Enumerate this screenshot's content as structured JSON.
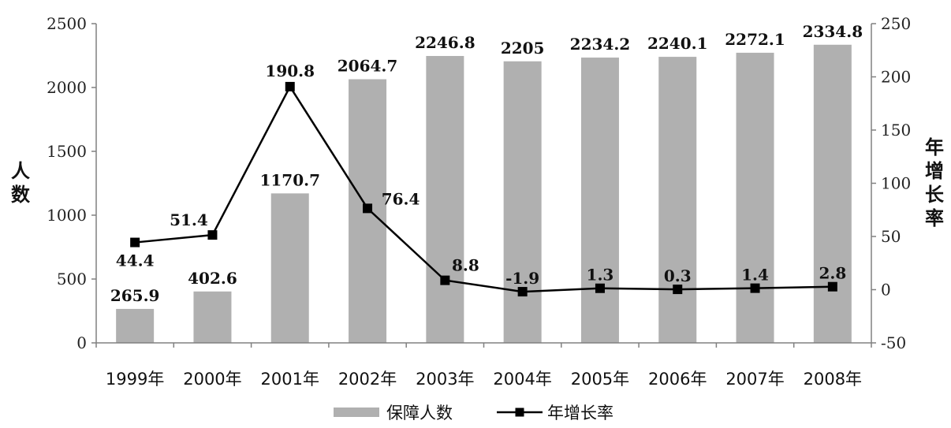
{
  "chart_data": {
    "type": "bar",
    "categories": [
      "1999年",
      "2000年",
      "2001年",
      "2002年",
      "2003年",
      "2004年",
      "2005年",
      "2006年",
      "2007年",
      "2008年"
    ],
    "series": [
      {
        "name": "保障人数",
        "type": "bar",
        "axis": "left",
        "color": "#b0b0b0",
        "values": [
          265.9,
          402.6,
          1170.7,
          2064.7,
          2246.8,
          2205,
          2234.2,
          2240.1,
          2272.1,
          2334.8
        ],
        "labels": [
          "265.9",
          "402.6",
          "1170.7",
          "2064.7",
          "2246.8",
          "2205",
          "2234.2",
          "2240.1",
          "2272.1",
          "2334.8"
        ]
      },
      {
        "name": "年增长率",
        "type": "line",
        "axis": "right",
        "color": "#000000",
        "marker": "square",
        "values": [
          44.4,
          51.4,
          190.8,
          76.4,
          8.8,
          -1.9,
          1.3,
          0.3,
          1.4,
          2.8
        ],
        "labels": [
          "44.4",
          "51.4",
          "190.8",
          "76.4",
          "8.8",
          "-1.9",
          "1.3",
          "0.3",
          "1.4",
          "2.8"
        ]
      }
    ],
    "ylabel": "人数",
    "y2label": "年增长率",
    "xlabel": "",
    "title": "",
    "ylim": [
      0,
      2500
    ],
    "y_ticks": [
      "0",
      "500",
      "1000",
      "1500",
      "2000",
      "2500"
    ],
    "y2lim": [
      -50,
      250
    ],
    "y2_ticks": [
      "-50",
      "0",
      "50",
      "100",
      "150",
      "200",
      "250"
    ],
    "grid": false,
    "legend_position": "bottom"
  }
}
